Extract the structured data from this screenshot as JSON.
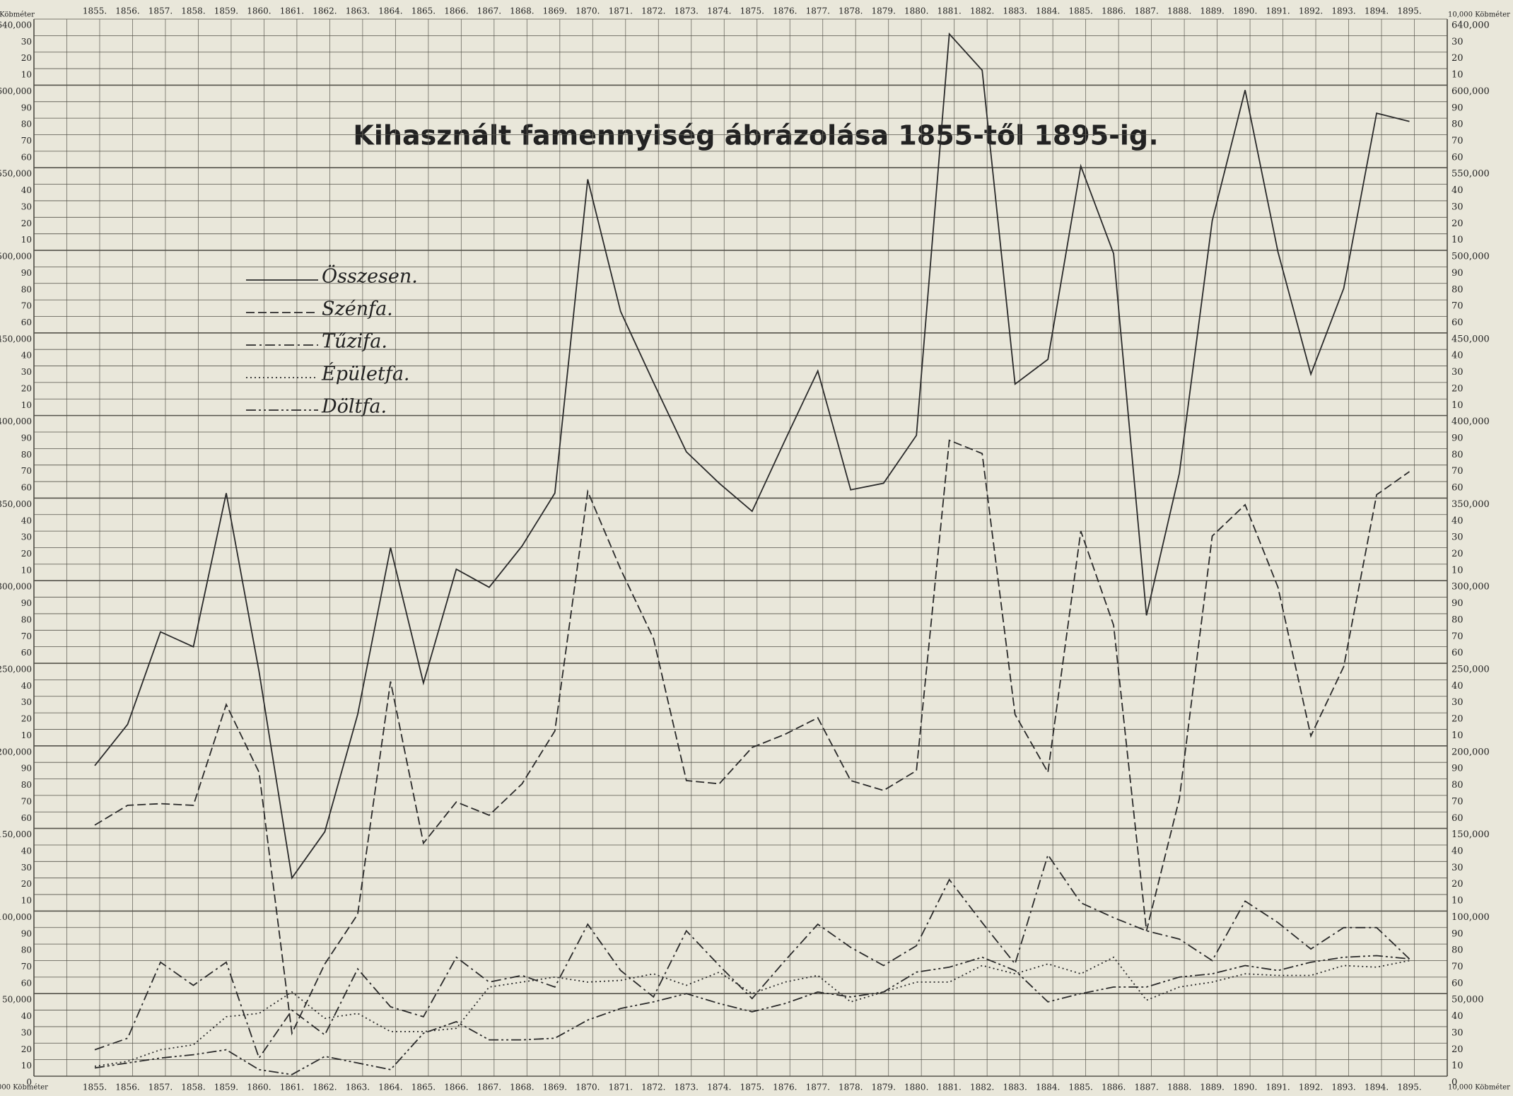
{
  "chart_data": {
    "type": "line",
    "title": "Kihasznált famennyiség ábrázolása 1855-től 1895-ig.",
    "unit_label": "Köbméter",
    "scale_note": "10,000 Köbméter",
    "categories": [
      "1855.",
      "1856.",
      "1857.",
      "1858.",
      "1859.",
      "1860.",
      "1861.",
      "1862.",
      "1863.",
      "1864.",
      "1865.",
      "1866.",
      "1867.",
      "1868.",
      "1869.",
      "1870.",
      "1871.",
      "1872.",
      "1873.",
      "1874.",
      "1875.",
      "1876.",
      "1877.",
      "1878.",
      "1879.",
      "1880.",
      "1881.",
      "1882.",
      "1883.",
      "1884.",
      "1885.",
      "1886.",
      "1887.",
      "1888.",
      "1889.",
      "1890.",
      "1891.",
      "1892.",
      "1893.",
      "1894.",
      "1895."
    ],
    "ylim": [
      0,
      640000
    ],
    "yticks": [
      0,
      {
        "value": 10000,
        "label": "10"
      },
      {
        "value": 20000,
        "label": "20"
      },
      {
        "value": 30000,
        "label": "30"
      },
      {
        "value": 40000,
        "label": "40"
      },
      {
        "value": 50000,
        "label": "50,000"
      },
      {
        "value": 60000,
        "label": "60"
      },
      {
        "value": 70000,
        "label": "70"
      },
      {
        "value": 80000,
        "label": "80"
      },
      {
        "value": 90000,
        "label": "90"
      },
      {
        "value": 100000,
        "label": "100,000"
      },
      {
        "value": 110000,
        "label": "10"
      },
      {
        "value": 120000,
        "label": "20"
      },
      {
        "value": 130000,
        "label": "30"
      },
      {
        "value": 140000,
        "label": "40"
      },
      {
        "value": 150000,
        "label": "150,000"
      },
      {
        "value": 160000,
        "label": "60"
      },
      {
        "value": 170000,
        "label": "70"
      },
      {
        "value": 180000,
        "label": "80"
      },
      {
        "value": 190000,
        "label": "90"
      },
      {
        "value": 200000,
        "label": "200,000"
      },
      {
        "value": 210000,
        "label": "10"
      },
      {
        "value": 220000,
        "label": "20"
      },
      {
        "value": 230000,
        "label": "30"
      },
      {
        "value": 240000,
        "label": "40"
      },
      {
        "value": 250000,
        "label": "250,000"
      },
      {
        "value": 260000,
        "label": "60"
      },
      {
        "value": 270000,
        "label": "70"
      },
      {
        "value": 280000,
        "label": "80"
      },
      {
        "value": 290000,
        "label": "90"
      },
      {
        "value": 300000,
        "label": "300,000"
      },
      {
        "value": 310000,
        "label": "10"
      },
      {
        "value": 320000,
        "label": "20"
      },
      {
        "value": 330000,
        "label": "30"
      },
      {
        "value": 340000,
        "label": "40"
      },
      {
        "value": 350000,
        "label": "350,000"
      },
      {
        "value": 360000,
        "label": "60"
      },
      {
        "value": 370000,
        "label": "70"
      },
      {
        "value": 380000,
        "label": "80"
      },
      {
        "value": 390000,
        "label": "90"
      },
      {
        "value": 400000,
        "label": "400,000"
      },
      {
        "value": 410000,
        "label": "10"
      },
      {
        "value": 420000,
        "label": "20"
      },
      {
        "value": 430000,
        "label": "30"
      },
      {
        "value": 440000,
        "label": "40"
      },
      {
        "value": 450000,
        "label": "450,000"
      },
      {
        "value": 460000,
        "label": "60"
      },
      {
        "value": 470000,
        "label": "70"
      },
      {
        "value": 480000,
        "label": "80"
      },
      {
        "value": 490000,
        "label": "90"
      },
      {
        "value": 500000,
        "label": "500,000"
      },
      {
        "value": 510000,
        "label": "10"
      },
      {
        "value": 520000,
        "label": "20"
      },
      {
        "value": 530000,
        "label": "30"
      },
      {
        "value": 540000,
        "label": "40"
      },
      {
        "value": 550000,
        "label": "550,000"
      },
      {
        "value": 560000,
        "label": "60"
      },
      {
        "value": 570000,
        "label": "70"
      },
      {
        "value": 580000,
        "label": "80"
      },
      {
        "value": 590000,
        "label": "90"
      },
      {
        "value": 600000,
        "label": "600,000"
      },
      {
        "value": 610000,
        "label": "10"
      },
      {
        "value": 620000,
        "label": "20"
      },
      {
        "value": 630000,
        "label": "30"
      },
      {
        "value": 640000,
        "label": "640,000"
      }
    ],
    "grid": true,
    "series": [
      {
        "name": "Összesen.",
        "color": "#2a2a2a",
        "style": "solid",
        "values": [
          188000,
          213000,
          269000,
          260000,
          353000,
          245000,
          120000,
          148000,
          219000,
          320000,
          238000,
          307000,
          296000,
          321000,
          353000,
          543000,
          463000,
          420000,
          378000,
          359000,
          342000,
          385000,
          427000,
          355000,
          359000,
          388000,
          631000,
          609000,
          419000,
          434000,
          551000,
          498000,
          279000,
          365000,
          518000,
          597000,
          499000,
          425000,
          477000,
          583000,
          578000
        ]
      },
      {
        "name": "Szénfa.",
        "color": "#2a2a2a",
        "style": "dashed",
        "values": [
          152000,
          164000,
          165000,
          164000,
          225000,
          184000,
          26000,
          68000,
          98000,
          239000,
          141000,
          166000,
          158000,
          177000,
          209000,
          354000,
          307000,
          265000,
          179000,
          177000,
          199000,
          207000,
          217000,
          179000,
          173000,
          185000,
          385000,
          377000,
          219000,
          184000,
          330000,
          273000,
          88000,
          168000,
          327000,
          346000,
          296000,
          206000,
          248000,
          352000,
          366000
        ]
      },
      {
        "name": "Tűzifa.",
        "color": "#2a2a2a",
        "style": "dashdot",
        "values": [
          16000,
          23000,
          69000,
          55000,
          69000,
          11000,
          40000,
          25000,
          65000,
          42000,
          36000,
          72000,
          57000,
          61000,
          54000,
          92000,
          64000,
          48000,
          88000,
          67000,
          47000,
          70000,
          92000,
          78000,
          67000,
          79000,
          119000,
          93000,
          68000,
          134000,
          105000,
          96000,
          88000,
          83000,
          70000,
          106000,
          93000,
          77000,
          90000,
          90000,
          71000
        ]
      },
      {
        "name": "Épületfa.",
        "color": "#2a2a2a",
        "style": "dotted",
        "values": [
          6000,
          9000,
          16000,
          19000,
          36000,
          38000,
          51000,
          35000,
          38000,
          27000,
          27000,
          29000,
          54000,
          57000,
          60000,
          57000,
          58000,
          62000,
          55000,
          63000,
          50000,
          57000,
          61000,
          45000,
          51000,
          57000,
          57000,
          67000,
          62000,
          68000,
          62000,
          72000,
          46000,
          54000,
          57000,
          62000,
          61000,
          61000,
          67000,
          66000,
          70000
        ]
      },
      {
        "name": "Döltfa.",
        "color": "#2a2a2a",
        "style": "dashdotdot",
        "values": [
          5000,
          8000,
          11000,
          13000,
          16000,
          4000,
          1000,
          12000,
          8000,
          4000,
          26000,
          33000,
          22000,
          22000,
          23000,
          34000,
          41000,
          45000,
          50000,
          44000,
          39000,
          44000,
          51000,
          48000,
          51000,
          63000,
          66000,
          72000,
          64000,
          45000,
          50000,
          54000,
          54000,
          60000,
          62000,
          67000,
          64000,
          69000,
          72000,
          73000,
          71000
        ]
      }
    ]
  }
}
